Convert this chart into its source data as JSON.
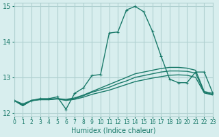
{
  "xlabel": "Humidex (Indice chaleur)",
  "ylabel": "",
  "background_color": "#d8eeee",
  "grid_color": "#b0d0d0",
  "line_color": "#1a7a6a",
  "xlim": [
    0,
    23
  ],
  "ylim": [
    11.9,
    15.1
  ],
  "yticks": [
    12,
    13,
    14,
    15
  ],
  "xticks": [
    0,
    1,
    2,
    3,
    4,
    5,
    6,
    7,
    8,
    9,
    10,
    11,
    12,
    13,
    14,
    15,
    16,
    17,
    18,
    19,
    20,
    21,
    22,
    23
  ],
  "lines": [
    {
      "x": [
        0,
        1,
        2,
        3,
        4,
        5,
        6,
        7,
        8,
        9,
        10,
        11,
        12,
        13,
        14,
        15,
        16,
        17,
        18,
        19,
        20,
        21,
        22,
        23
      ],
      "y": [
        12.35,
        12.25,
        12.35,
        12.4,
        12.4,
        12.45,
        12.1,
        12.55,
        12.7,
        13.05,
        13.08,
        14.25,
        14.28,
        14.9,
        15.0,
        14.85,
        14.3,
        13.6,
        12.95,
        12.85,
        12.85,
        13.15,
        13.15,
        12.55
      ],
      "marker": "+"
    },
    {
      "x": [
        0,
        1,
        2,
        3,
        4,
        5,
        6,
        7,
        8,
        9,
        10,
        11,
        12,
        13,
        14,
        15,
        16,
        17,
        18,
        19,
        20,
        21,
        22,
        23
      ],
      "y": [
        12.35,
        12.2,
        12.35,
        12.38,
        12.38,
        12.4,
        12.38,
        12.42,
        12.5,
        12.6,
        12.7,
        12.8,
        12.9,
        13.0,
        13.1,
        13.15,
        13.2,
        13.25,
        13.28,
        13.28,
        13.26,
        13.2,
        12.6,
        12.55
      ],
      "marker": null
    },
    {
      "x": [
        0,
        1,
        2,
        3,
        4,
        5,
        6,
        7,
        8,
        9,
        10,
        11,
        12,
        13,
        14,
        15,
        16,
        17,
        18,
        19,
        20,
        21,
        22,
        23
      ],
      "y": [
        12.35,
        12.2,
        12.35,
        12.38,
        12.38,
        12.4,
        12.36,
        12.4,
        12.48,
        12.58,
        12.65,
        12.72,
        12.82,
        12.9,
        13.0,
        13.05,
        13.1,
        13.15,
        13.18,
        13.18,
        13.17,
        13.12,
        12.58,
        12.52
      ],
      "marker": null
    },
    {
      "x": [
        0,
        1,
        2,
        3,
        4,
        5,
        6,
        7,
        8,
        9,
        10,
        11,
        12,
        13,
        14,
        15,
        16,
        17,
        18,
        19,
        20,
        21,
        22,
        23
      ],
      "y": [
        12.35,
        12.22,
        12.34,
        12.37,
        12.37,
        12.39,
        12.35,
        12.38,
        12.44,
        12.52,
        12.58,
        12.64,
        12.72,
        12.8,
        12.88,
        12.93,
        12.98,
        13.02,
        13.06,
        13.07,
        13.06,
        13.0,
        12.56,
        12.5
      ],
      "marker": null
    }
  ]
}
